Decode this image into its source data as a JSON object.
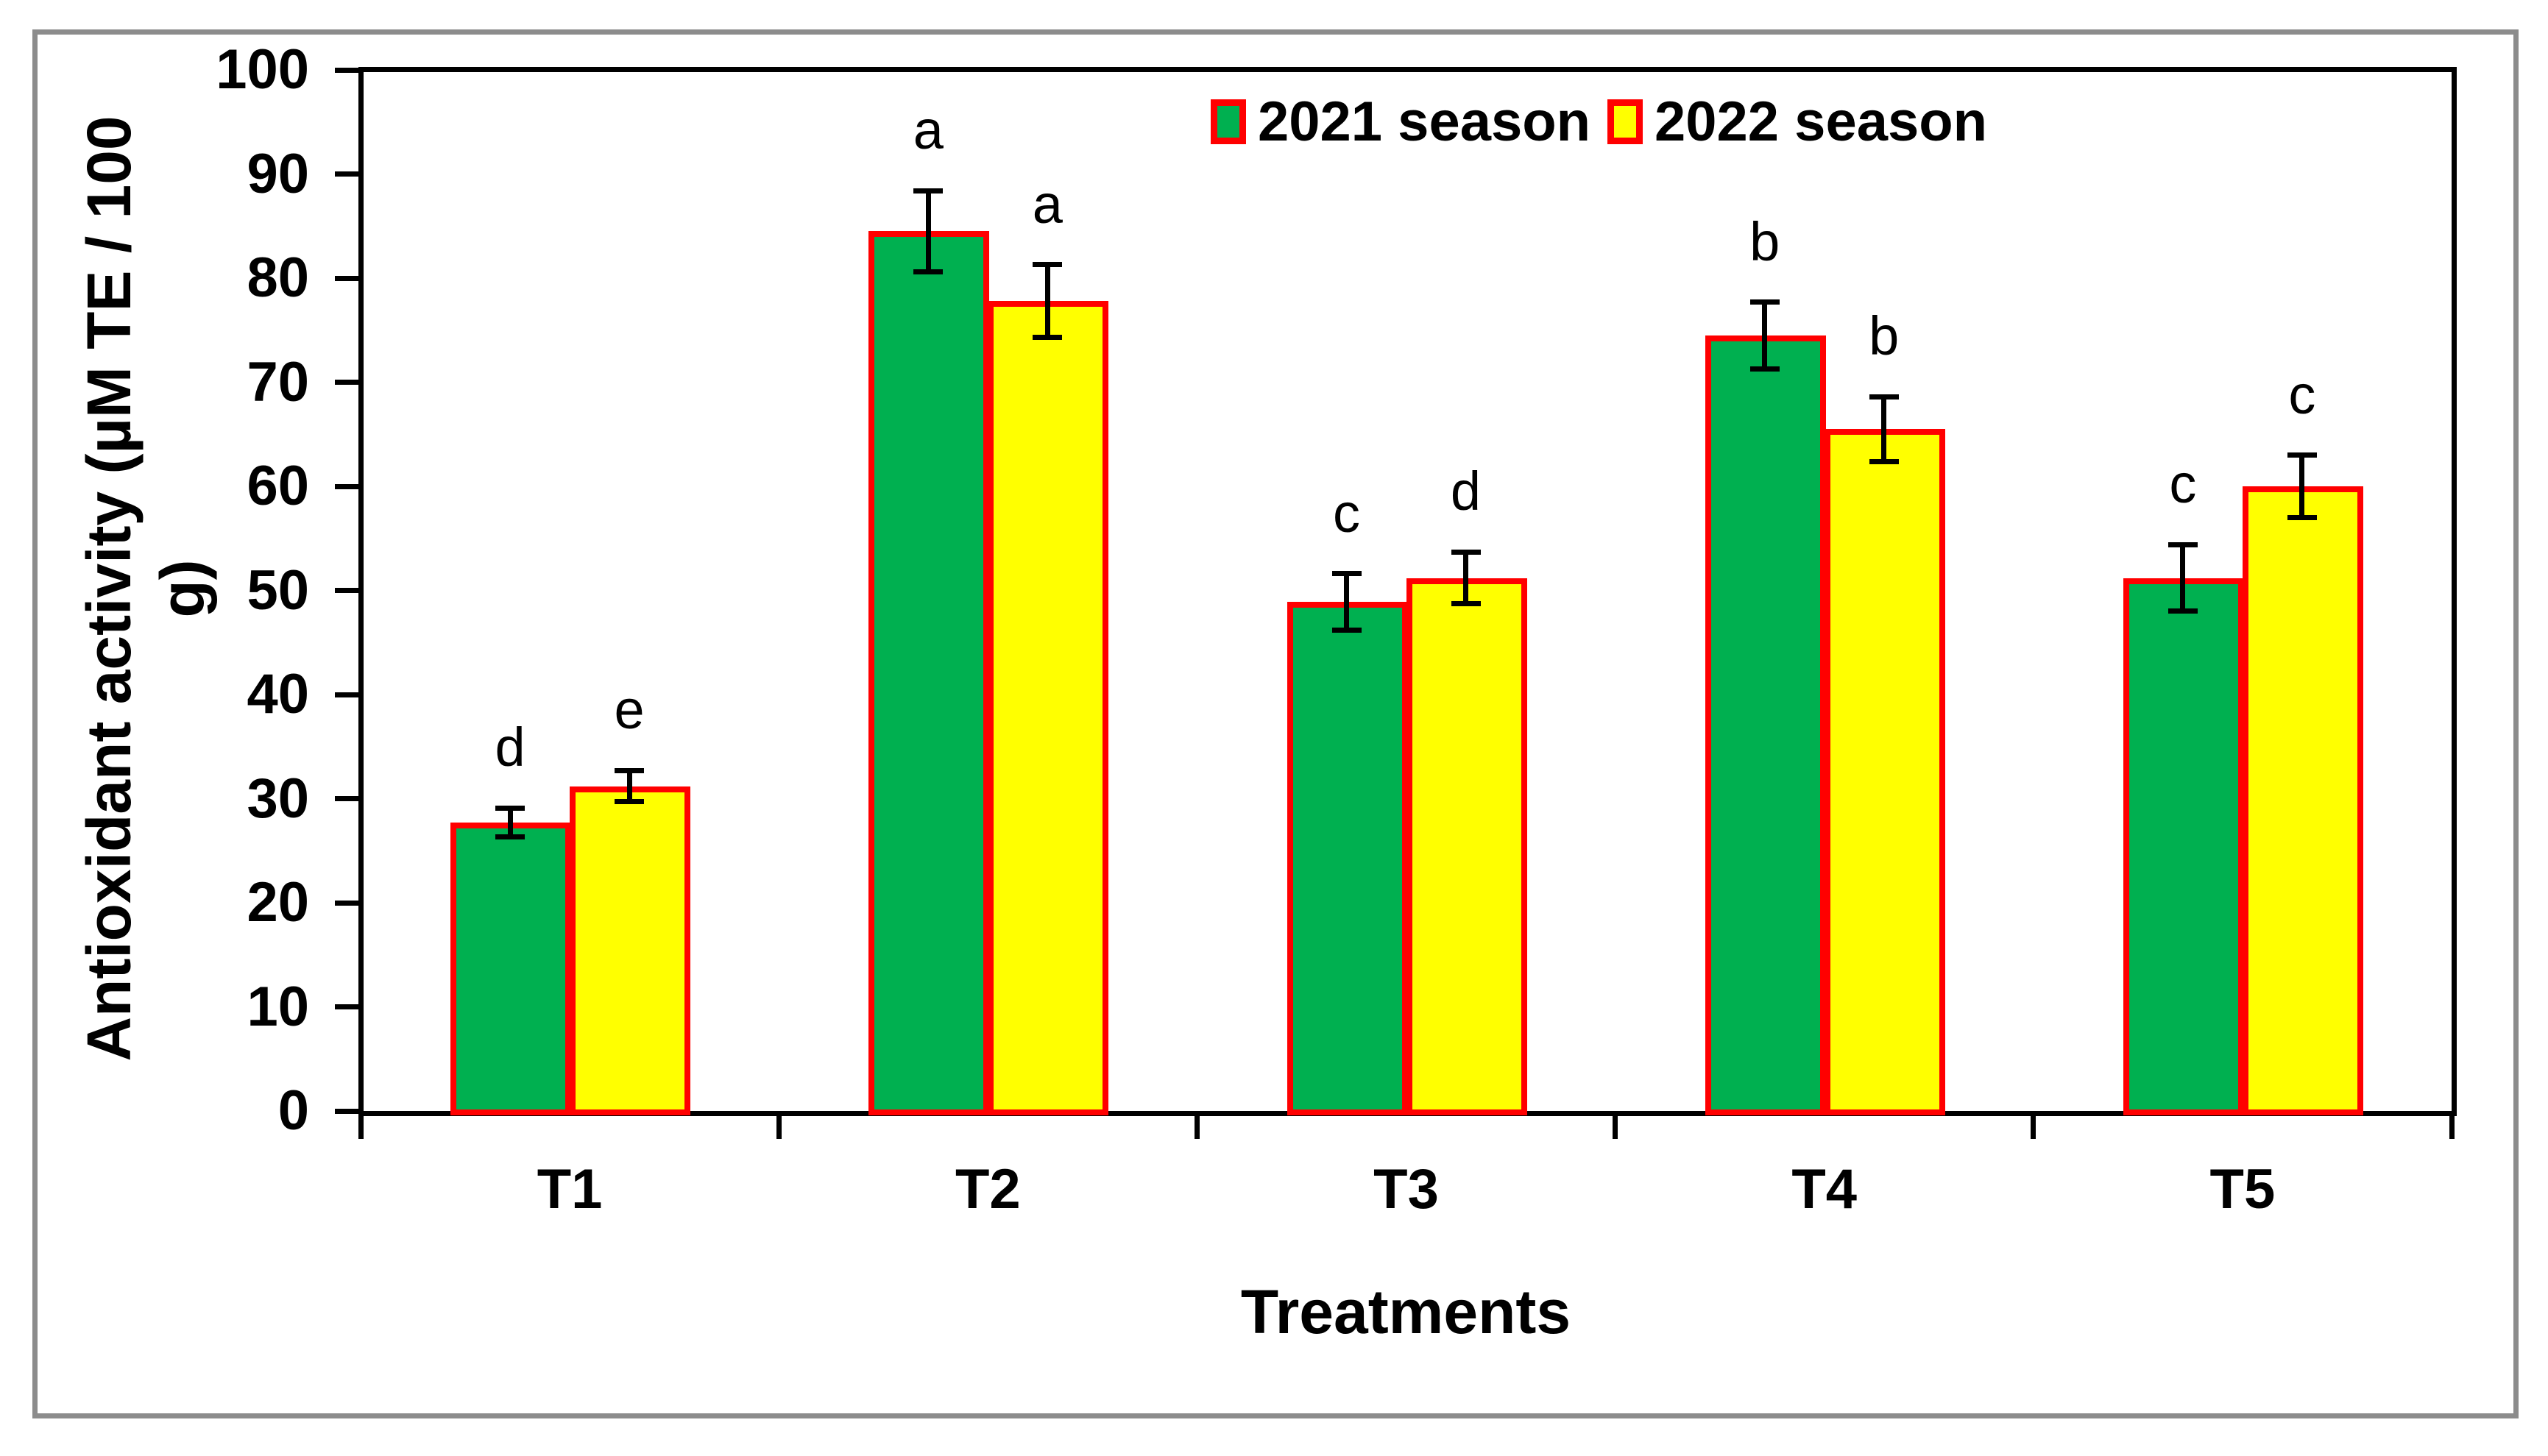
{
  "figure": {
    "border_color": "#8C8C8C",
    "background": "#FFFFFF"
  },
  "chart_data": {
    "type": "bar",
    "title": "",
    "xlabel": "Treatments",
    "ylabel": "Antioxidant activity (µM TE / 100 g)",
    "ylim": [
      0,
      100
    ],
    "yticks": [
      "0",
      "10",
      "20",
      "30",
      "40",
      "50",
      "60",
      "70",
      "80",
      "90",
      "100"
    ],
    "categories": [
      "T1",
      "T2",
      "T3",
      "T4",
      "T5"
    ],
    "grid": false,
    "legend_position": "top-center-inside",
    "bar_border_color": "#FF0000",
    "error_bar_color": "#000000",
    "series": [
      {
        "name": "2021 season",
        "color": "#00B050",
        "values": [
          27.7,
          84.5,
          48.9,
          74.5,
          51.2
        ],
        "errors": [
          1.4,
          3.9,
          2.7,
          3.2,
          3.2
        ],
        "letters": [
          "d",
          "a",
          "c",
          "b",
          "c"
        ]
      },
      {
        "name": "2022 season",
        "color": "#FFFF00",
        "values": [
          31.2,
          77.8,
          51.2,
          65.5,
          60.0
        ],
        "errors": [
          1.5,
          3.5,
          2.5,
          3.1,
          3.0
        ],
        "letters": [
          "e",
          "a",
          "d",
          "b",
          "c"
        ]
      }
    ]
  }
}
